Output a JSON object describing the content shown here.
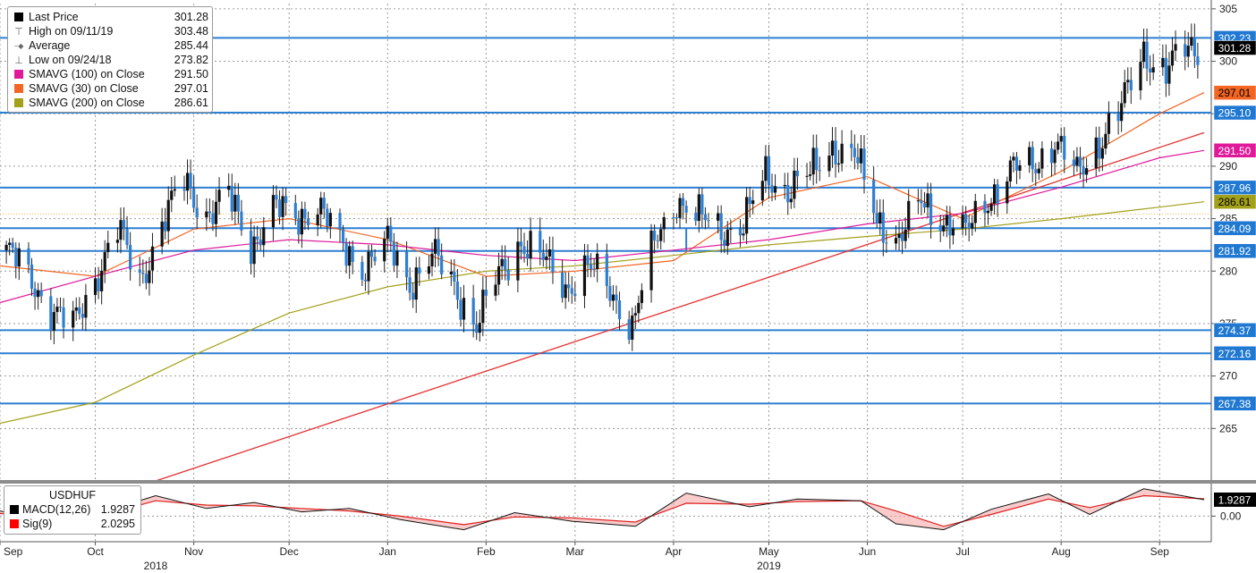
{
  "chart_data": {
    "type": "candlestick",
    "instrument": "USDHUF",
    "y_axis": {
      "ticks": [
        "305",
        "300",
        "295",
        "290",
        "285",
        "280",
        "275",
        "270",
        "265"
      ],
      "ylim": [
        260,
        305.5
      ]
    },
    "x_axis": {
      "months": [
        {
          "label": "Sep",
          "date": "2018-09-01"
        },
        {
          "label": "Oct",
          "date": "2018-10-01"
        },
        {
          "label": "Nov",
          "date": "2018-11-01"
        },
        {
          "label": "Dec",
          "date": "2018-12-01"
        },
        {
          "label": "Jan",
          "date": "2019-01-01"
        },
        {
          "label": "Feb",
          "date": "2019-02-01"
        },
        {
          "label": "Mar",
          "date": "2019-03-01"
        },
        {
          "label": "Apr",
          "date": "2019-04-01"
        },
        {
          "label": "May",
          "date": "2019-05-01"
        },
        {
          "label": "Jun",
          "date": "2019-06-01"
        },
        {
          "label": "Jul",
          "date": "2019-07-01"
        },
        {
          "label": "Aug",
          "date": "2019-08-01"
        },
        {
          "label": "Sep",
          "date": "2019-09-01"
        }
      ],
      "years": [
        {
          "label": "2018"
        },
        {
          "label": "2019"
        }
      ],
      "xlim": [
        "2018-09-01",
        "2019-09-15"
      ]
    },
    "legend": [
      {
        "label": "Last Price",
        "value": "301.28",
        "color": "#000000",
        "symbol": "square"
      },
      {
        "label": "High on 09/11/19",
        "value": "303.48",
        "color": "#555555",
        "symbol": "high"
      },
      {
        "label": "Average",
        "value": "285.44",
        "color": "#555555",
        "symbol": "avg"
      },
      {
        "label": "Low on 09/24/18",
        "value": "273.82",
        "color": "#555555",
        "symbol": "low"
      },
      {
        "label": "SMAVG (100)  on Close",
        "value": "291.50",
        "color": "#e0189a",
        "symbol": "square"
      },
      {
        "label": "SMAVG (30)  on Close",
        "value": "297.01",
        "color": "#f26522",
        "symbol": "square"
      },
      {
        "label": "SMAVG (200)  on Close",
        "value": "286.61",
        "color": "#a3a019",
        "symbol": "square"
      }
    ],
    "horizontal_levels": [
      302.23,
      295.1,
      287.96,
      284.09,
      281.92,
      274.37,
      272.16,
      267.38
    ],
    "price_tags": [
      {
        "label": "302.23",
        "value": 302.23,
        "bg": "#1f78d1",
        "fg": "#ffffff"
      },
      {
        "label": "301.28",
        "value": 301.28,
        "bg": "#000000",
        "fg": "#ffffff"
      },
      {
        "label": "297.01",
        "value": 297.01,
        "bg": "#f26522",
        "fg": "#000000"
      },
      {
        "label": "295.10",
        "value": 295.1,
        "bg": "#1f78d1",
        "fg": "#ffffff"
      },
      {
        "label": "291.50",
        "value": 291.5,
        "bg": "#e0189a",
        "fg": "#ffffff"
      },
      {
        "label": "287.96",
        "value": 287.96,
        "bg": "#1f78d1",
        "fg": "#ffffff"
      },
      {
        "label": "286.61",
        "value": 286.61,
        "bg": "#a3a019",
        "fg": "#000000"
      },
      {
        "label": "284.09",
        "value": 284.09,
        "bg": "#1f78d1",
        "fg": "#ffffff"
      },
      {
        "label": "281.92",
        "value": 281.92,
        "bg": "#1f78d1",
        "fg": "#ffffff"
      },
      {
        "label": "274.37",
        "value": 274.37,
        "bg": "#1f78d1",
        "fg": "#ffffff"
      },
      {
        "label": "272.16",
        "value": 272.16,
        "bg": "#1f78d1",
        "fg": "#ffffff"
      },
      {
        "label": "267.38",
        "value": 267.38,
        "bg": "#1f78d1",
        "fg": "#ffffff"
      }
    ],
    "trendline": {
      "from": [
        "2018-10-20",
        260.0
      ],
      "to": [
        "2019-09-15",
        293.2
      ]
    },
    "close_path": [
      [
        "2018-09-03",
        282.0
      ],
      [
        "2018-09-10",
        279.5
      ],
      [
        "2018-09-17",
        276.5
      ],
      [
        "2018-09-24",
        274.5
      ],
      [
        "2018-10-01",
        279.5
      ],
      [
        "2018-10-08",
        284.0
      ],
      [
        "2018-10-15",
        279.0
      ],
      [
        "2018-10-22",
        284.5
      ],
      [
        "2018-10-29",
        288.5
      ],
      [
        "2018-11-05",
        285.5
      ],
      [
        "2018-11-12",
        287.0
      ],
      [
        "2018-11-19",
        282.5
      ],
      [
        "2018-11-26",
        286.0
      ],
      [
        "2018-12-03",
        285.0
      ],
      [
        "2018-12-10",
        286.5
      ],
      [
        "2018-12-17",
        282.5
      ],
      [
        "2018-12-24",
        280.5
      ],
      [
        "2019-01-01",
        282.5
      ],
      [
        "2019-01-08",
        279.0
      ],
      [
        "2019-01-15",
        281.5
      ],
      [
        "2019-01-22",
        278.5
      ],
      [
        "2019-01-29",
        275.0
      ],
      [
        "2019-02-05",
        279.5
      ],
      [
        "2019-02-12",
        283.0
      ],
      [
        "2019-02-19",
        281.0
      ],
      [
        "2019-02-26",
        278.5
      ],
      [
        "2019-03-05",
        280.5
      ],
      [
        "2019-03-12",
        278.0
      ],
      [
        "2019-03-19",
        275.0
      ],
      [
        "2019-03-26",
        282.5
      ],
      [
        "2019-04-02",
        287.0
      ],
      [
        "2019-04-09",
        285.0
      ],
      [
        "2019-04-16",
        284.0
      ],
      [
        "2019-04-23",
        284.5
      ],
      [
        "2019-04-30",
        289.0
      ],
      [
        "2019-05-07",
        288.0
      ],
      [
        "2019-05-14",
        289.0
      ],
      [
        "2019-05-21",
        292.0
      ],
      [
        "2019-05-28",
        291.0
      ],
      [
        "2019-06-04",
        285.0
      ],
      [
        "2019-06-11",
        283.0
      ],
      [
        "2019-06-18",
        286.5
      ],
      [
        "2019-06-25",
        285.0
      ],
      [
        "2019-07-02",
        283.5
      ],
      [
        "2019-07-09",
        287.0
      ],
      [
        "2019-07-16",
        289.5
      ],
      [
        "2019-07-23",
        290.0
      ],
      [
        "2019-07-30",
        292.5
      ],
      [
        "2019-08-06",
        289.0
      ],
      [
        "2019-08-13",
        292.5
      ],
      [
        "2019-08-20",
        295.5
      ],
      [
        "2019-08-27",
        301.0
      ],
      [
        "2019-09-03",
        299.0
      ],
      [
        "2019-09-10",
        301.28
      ]
    ],
    "sma_series": [
      {
        "name": "SMAVG (30)",
        "color": "#f26522",
        "points": [
          [
            "2018-09-01",
            280.5
          ],
          [
            "2018-10-01",
            279.5
          ],
          [
            "2018-11-01",
            284.0
          ],
          [
            "2018-12-01",
            285.0
          ],
          [
            "2019-01-01",
            283.0
          ],
          [
            "2019-02-01",
            279.5
          ],
          [
            "2019-03-01",
            280.0
          ],
          [
            "2019-04-01",
            281.0
          ],
          [
            "2019-05-01",
            287.0
          ],
          [
            "2019-06-01",
            289.0
          ],
          [
            "2019-07-01",
            285.0
          ],
          [
            "2019-08-01",
            289.5
          ],
          [
            "2019-09-01",
            295.0
          ],
          [
            "2019-09-15",
            297.01
          ]
        ]
      },
      {
        "name": "SMAVG (100)",
        "color": "#e0189a",
        "points": [
          [
            "2018-09-01",
            277.0
          ],
          [
            "2018-10-01",
            279.5
          ],
          [
            "2018-11-01",
            282.0
          ],
          [
            "2018-12-01",
            283.0
          ],
          [
            "2019-01-01",
            282.5
          ],
          [
            "2019-02-01",
            281.5
          ],
          [
            "2019-03-01",
            281.0
          ],
          [
            "2019-04-01",
            282.0
          ],
          [
            "2019-05-01",
            283.0
          ],
          [
            "2019-06-01",
            284.5
          ],
          [
            "2019-07-01",
            285.5
          ],
          [
            "2019-08-01",
            288.0
          ],
          [
            "2019-09-01",
            290.8
          ],
          [
            "2019-09-15",
            291.5
          ]
        ]
      },
      {
        "name": "SMAVG (200)",
        "color": "#a3a019",
        "points": [
          [
            "2018-09-01",
            265.5
          ],
          [
            "2018-10-01",
            267.5
          ],
          [
            "2018-11-01",
            272.0
          ],
          [
            "2018-12-01",
            276.0
          ],
          [
            "2019-01-01",
            278.5
          ],
          [
            "2019-02-01",
            280.0
          ],
          [
            "2019-03-01",
            280.5
          ],
          [
            "2019-04-01",
            281.5
          ],
          [
            "2019-05-01",
            282.5
          ],
          [
            "2019-06-01",
            283.3
          ],
          [
            "2019-07-01",
            284.0
          ],
          [
            "2019-08-01",
            285.0
          ],
          [
            "2019-09-01",
            286.1
          ],
          [
            "2019-09-15",
            286.61
          ]
        ]
      }
    ],
    "macd_panel": {
      "title": "USDHUF",
      "legend": [
        {
          "label": "MACD(12,26)",
          "value": "1.9287",
          "color": "#000000"
        },
        {
          "label": "Sig(9)",
          "value": "2.0295",
          "color": "#ff0000"
        }
      ],
      "y_ticks": [
        "0.00"
      ],
      "last_tag": "1.9287",
      "macd": [
        [
          "2018-09-01",
          0.6
        ],
        [
          "2018-09-15",
          -0.4
        ],
        [
          "2018-10-01",
          0.2
        ],
        [
          "2018-10-20",
          2.4
        ],
        [
          "2018-11-05",
          0.9
        ],
        [
          "2018-11-20",
          1.6
        ],
        [
          "2018-12-05",
          0.5
        ],
        [
          "2018-12-20",
          0.9
        ],
        [
          "2019-01-05",
          -0.4
        ],
        [
          "2019-01-25",
          -1.6
        ],
        [
          "2019-02-10",
          0.4
        ],
        [
          "2019-02-28",
          -0.6
        ],
        [
          "2019-03-20",
          -1.2
        ],
        [
          "2019-04-05",
          2.7
        ],
        [
          "2019-04-25",
          1.1
        ],
        [
          "2019-05-10",
          2.0
        ],
        [
          "2019-05-30",
          1.8
        ],
        [
          "2019-06-10",
          -0.9
        ],
        [
          "2019-06-25",
          -1.6
        ],
        [
          "2019-07-10",
          0.8
        ],
        [
          "2019-07-28",
          2.6
        ],
        [
          "2019-08-10",
          0.2
        ],
        [
          "2019-08-27",
          3.2
        ],
        [
          "2019-09-15",
          1.9287
        ]
      ],
      "signal": [
        [
          "2018-09-01",
          0.3
        ],
        [
          "2018-09-15",
          0.0
        ],
        [
          "2018-10-01",
          -0.1
        ],
        [
          "2018-10-20",
          1.8
        ],
        [
          "2018-11-05",
          1.3
        ],
        [
          "2018-11-20",
          1.2
        ],
        [
          "2018-12-05",
          0.9
        ],
        [
          "2018-12-20",
          0.6
        ],
        [
          "2019-01-05",
          0.0
        ],
        [
          "2019-01-25",
          -1.0
        ],
        [
          "2019-02-10",
          -0.1
        ],
        [
          "2019-02-28",
          -0.2
        ],
        [
          "2019-03-20",
          -0.7
        ],
        [
          "2019-04-05",
          1.5
        ],
        [
          "2019-04-25",
          1.4
        ],
        [
          "2019-05-10",
          1.7
        ],
        [
          "2019-05-30",
          1.8
        ],
        [
          "2019-06-10",
          0.6
        ],
        [
          "2019-06-25",
          -1.2
        ],
        [
          "2019-07-10",
          0.2
        ],
        [
          "2019-07-28",
          2.0
        ],
        [
          "2019-08-10",
          1.0
        ],
        [
          "2019-08-27",
          2.4
        ],
        [
          "2019-09-15",
          2.0295
        ]
      ],
      "ylim": [
        -3.0,
        3.6
      ]
    }
  }
}
